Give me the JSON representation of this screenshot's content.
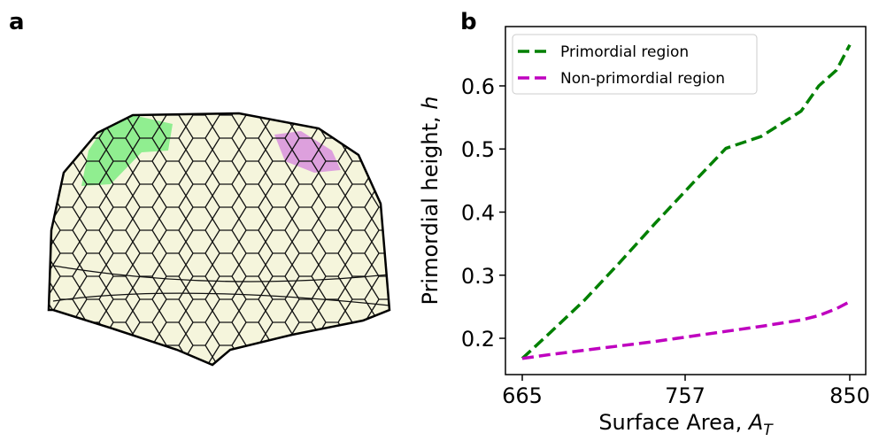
{
  "panel_labels": [
    "a",
    "b"
  ],
  "chart_data": {
    "type": "line",
    "xlabel": {
      "text": "Surface Area, ",
      "symbol": "A",
      "subscript": "T"
    },
    "ylabel": {
      "text": "Primordial height, ",
      "symbol": "h"
    },
    "x": [
      665,
      680,
      700,
      720,
      740,
      760,
      780,
      800,
      822.5,
      832.5,
      842.5,
      850
    ],
    "series": [
      {
        "name": "Primordial region",
        "color": "#008000",
        "values": [
          0.168,
          0.207,
          0.26,
          0.32,
          0.382,
          0.442,
          0.501,
          0.52,
          0.56,
          0.6,
          0.625,
          0.665
        ]
      },
      {
        "name": "Non-primordial region",
        "color": "#bf00bf",
        "values": [
          0.168,
          0.174,
          0.181,
          0.188,
          0.195,
          0.203,
          0.211,
          0.219,
          0.229,
          0.236,
          0.247,
          0.258
        ]
      }
    ],
    "xlim": [
      655.5,
      859
    ],
    "ylim": [
      0.1425,
      0.694
    ],
    "xticks": [
      665,
      757,
      850
    ],
    "yticks": [
      0.2,
      0.3,
      0.4,
      0.5,
      0.6
    ],
    "legend": "upper left"
  }
}
